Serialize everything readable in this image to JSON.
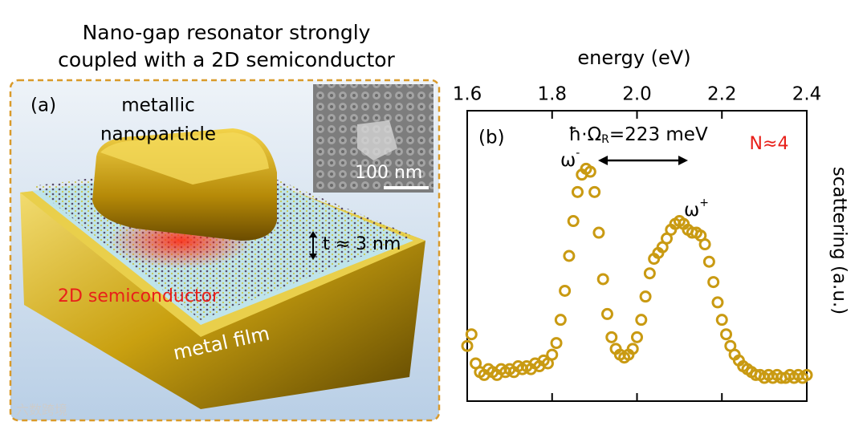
{
  "panel_a": {
    "title_line1": "Nano-gap resonator strongly",
    "title_line2": "coupled with a 2D semiconductor",
    "label": "(a)",
    "particle_line1": "metallic",
    "particle_line2": "nanoparticle",
    "scale_bar": "100 nm",
    "gap": "t ≈ 3 nm",
    "semiconductor": "2D semiconductor",
    "film": "metal film",
    "watermark": "六数跨境"
  },
  "chart_data": {
    "type": "scatter",
    "xlabel": "energy (eV)",
    "ylabel": "scattering (a.u.)",
    "xlim": [
      1.6,
      2.4
    ],
    "xticks": [
      1.6,
      1.8,
      {
        "value": 2,
        "label": "2.0"
      },
      2.2,
      2.4
    ],
    "ylim": [
      0,
      1
    ],
    "color": "#c99a12",
    "annotations": {
      "panel": "(b)",
      "rabi": [
        "ħ·Ω",
        "R",
        "=223 meV"
      ],
      "n": "N≈4",
      "lower": [
        "ω",
        "-"
      ],
      "upper": [
        "ω",
        "+"
      ]
    },
    "x": [
      1.6,
      1.61,
      1.62,
      1.63,
      1.64,
      1.65,
      1.66,
      1.67,
      1.68,
      1.69,
      1.7,
      1.71,
      1.72,
      1.73,
      1.74,
      1.75,
      1.76,
      1.77,
      1.78,
      1.79,
      1.8,
      1.81,
      1.82,
      1.83,
      1.84,
      1.85,
      1.86,
      1.87,
      1.88,
      1.89,
      1.9,
      1.91,
      1.92,
      1.93,
      1.94,
      1.95,
      1.96,
      1.97,
      1.98,
      1.99,
      2.0,
      2.01,
      2.02,
      2.03,
      2.04,
      2.05,
      2.06,
      2.07,
      2.08,
      2.09,
      2.1,
      2.11,
      2.12,
      2.13,
      2.14,
      2.15,
      2.16,
      2.17,
      2.18,
      2.19,
      2.2,
      2.21,
      2.22,
      2.23,
      2.24,
      2.25,
      2.26,
      2.27,
      2.28,
      2.29,
      2.3,
      2.31,
      2.32,
      2.33,
      2.34,
      2.35,
      2.36,
      2.37,
      2.38,
      2.39,
      2.4
    ],
    "values": [
      0.19,
      0.23,
      0.13,
      0.1,
      0.09,
      0.11,
      0.1,
      0.09,
      0.11,
      0.1,
      0.11,
      0.1,
      0.12,
      0.11,
      0.12,
      0.11,
      0.13,
      0.12,
      0.14,
      0.13,
      0.16,
      0.2,
      0.28,
      0.38,
      0.5,
      0.62,
      0.72,
      0.78,
      0.8,
      0.79,
      0.72,
      0.58,
      0.42,
      0.3,
      0.22,
      0.18,
      0.16,
      0.15,
      0.16,
      0.18,
      0.22,
      0.28,
      0.36,
      0.44,
      0.49,
      0.51,
      0.53,
      0.56,
      0.59,
      0.61,
      0.62,
      0.61,
      0.59,
      0.58,
      0.58,
      0.57,
      0.54,
      0.48,
      0.41,
      0.34,
      0.28,
      0.23,
      0.19,
      0.16,
      0.14,
      0.12,
      0.11,
      0.1,
      0.09,
      0.09,
      0.08,
      0.09,
      0.08,
      0.09,
      0.08,
      0.08,
      0.09,
      0.08,
      0.09,
      0.08,
      0.09
    ]
  }
}
